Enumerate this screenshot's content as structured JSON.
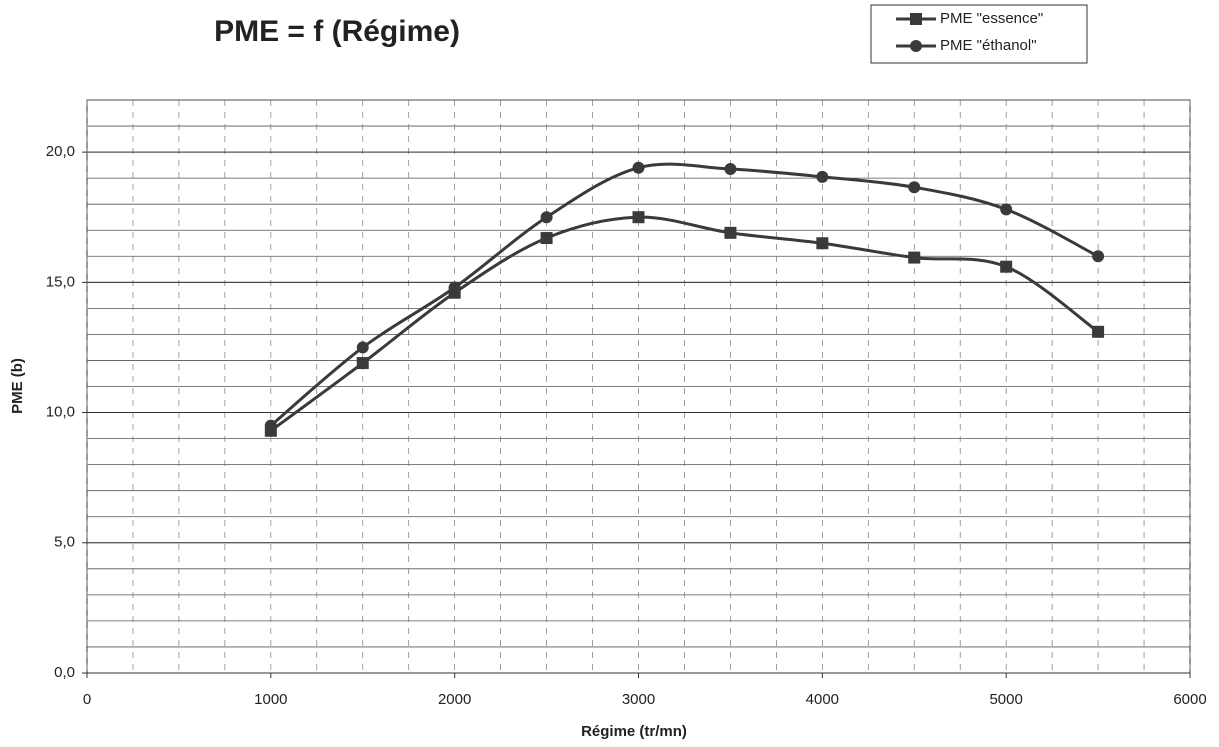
{
  "chart_data": {
    "type": "line",
    "title": "PME = f (Régime)",
    "x_label": "Régime (tr/mn)",
    "y_label": "PME (b)",
    "x": [
      1000,
      1500,
      2000,
      2500,
      3000,
      3500,
      4000,
      4500,
      5000,
      5500
    ],
    "series": [
      {
        "name": "PME \"essence\"",
        "color": "#3a3a3a",
        "marker": "square",
        "values": [
          9.3,
          11.9,
          14.6,
          16.7,
          17.5,
          16.9,
          16.5,
          15.95,
          15.6,
          13.1
        ]
      },
      {
        "name": "PME \"éthanol\"",
        "color": "#3a3a3a",
        "marker": "circle",
        "values": [
          9.5,
          12.5,
          14.8,
          17.5,
          19.4,
          19.35,
          19.05,
          18.65,
          17.8,
          16.0
        ]
      }
    ],
    "xlim": [
      0,
      6000
    ],
    "xticks": [
      0,
      1000,
      2000,
      3000,
      4000,
      5000,
      6000
    ],
    "ylim": [
      0,
      22
    ],
    "yticks": [
      {
        "value": 0,
        "label": "0,0"
      },
      {
        "value": 5,
        "label": "5,0"
      },
      {
        "value": 10,
        "label": "10,0"
      },
      {
        "value": 15,
        "label": "15,0"
      },
      {
        "value": 20,
        "label": "20,0"
      }
    ],
    "grid": true,
    "legend": "top-right"
  }
}
